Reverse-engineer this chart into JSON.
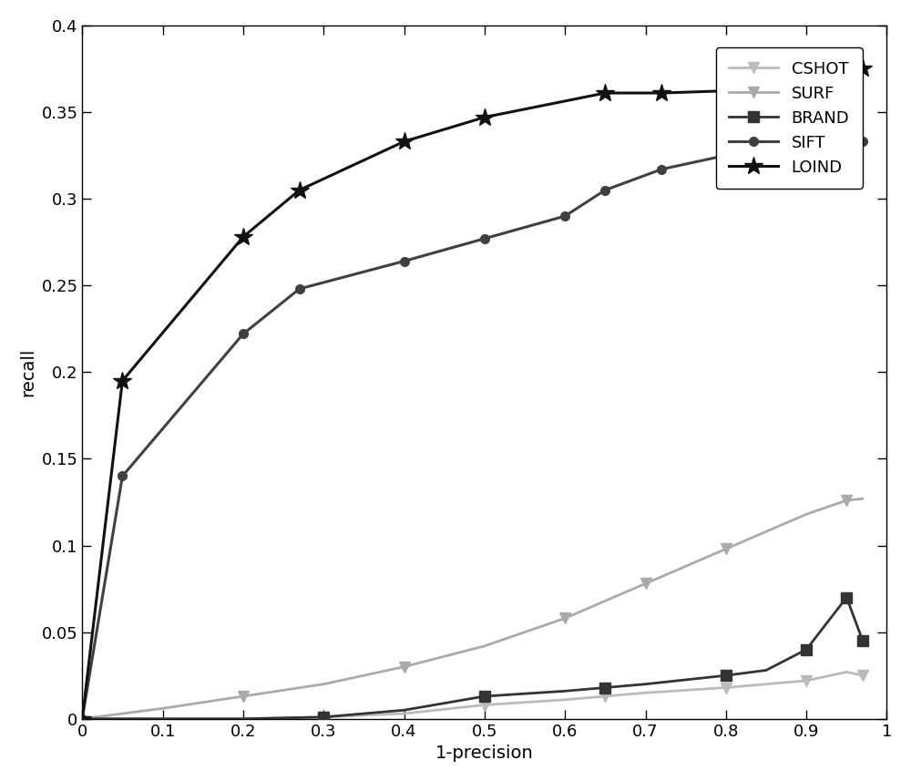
{
  "LOIND": {
    "x": [
      0.0,
      0.05,
      0.2,
      0.27,
      0.4,
      0.5,
      0.65,
      0.72,
      0.85,
      0.92,
      0.97
    ],
    "y": [
      0.0,
      0.195,
      0.278,
      0.305,
      0.333,
      0.347,
      0.361,
      0.361,
      0.363,
      0.37,
      0.375
    ],
    "color": "#111111",
    "linewidth": 2.2,
    "marker": "*",
    "markersize": 15,
    "label": "LOIND",
    "zorder": 5
  },
  "SIFT": {
    "x": [
      0.0,
      0.05,
      0.2,
      0.27,
      0.4,
      0.5,
      0.6,
      0.65,
      0.72,
      0.85,
      0.92,
      0.97
    ],
    "y": [
      0.0,
      0.14,
      0.222,
      0.248,
      0.264,
      0.277,
      0.29,
      0.305,
      0.317,
      0.33,
      0.333,
      0.333
    ],
    "color": "#404040",
    "linewidth": 2.2,
    "marker": "o",
    "markersize": 7,
    "label": "SIFT",
    "zorder": 4
  },
  "SURF": {
    "x": [
      0.0,
      0.05,
      0.1,
      0.2,
      0.3,
      0.4,
      0.5,
      0.6,
      0.65,
      0.7,
      0.75,
      0.8,
      0.85,
      0.9,
      0.95,
      0.97
    ],
    "y": [
      0.0,
      0.003,
      0.006,
      0.013,
      0.02,
      0.03,
      0.042,
      0.058,
      0.068,
      0.078,
      0.088,
      0.098,
      0.108,
      0.118,
      0.126,
      0.127
    ],
    "color": "#aaaaaa",
    "linewidth": 2.0,
    "marker": "v",
    "markersize": 9,
    "label": "SURF",
    "zorder": 3,
    "markevery": [
      3,
      5,
      7,
      9,
      11,
      14
    ]
  },
  "BRAND": {
    "x": [
      0.0,
      0.05,
      0.1,
      0.2,
      0.3,
      0.4,
      0.5,
      0.6,
      0.65,
      0.7,
      0.8,
      0.85,
      0.9,
      0.95,
      0.97
    ],
    "y": [
      0.0,
      0.0,
      0.0,
      0.0,
      0.001,
      0.005,
      0.013,
      0.016,
      0.018,
      0.02,
      0.025,
      0.028,
      0.04,
      0.07,
      0.045
    ],
    "color": "#333333",
    "linewidth": 2.0,
    "marker": "s",
    "markersize": 9,
    "label": "BRAND",
    "zorder": 4,
    "markevery": [
      4,
      6,
      8,
      10,
      12,
      13,
      14
    ]
  },
  "CSHOT": {
    "x": [
      0.0,
      0.05,
      0.1,
      0.2,
      0.3,
      0.4,
      0.5,
      0.6,
      0.65,
      0.7,
      0.8,
      0.85,
      0.9,
      0.95,
      0.97
    ],
    "y": [
      0.0,
      0.0,
      0.0,
      0.0,
      0.001,
      0.003,
      0.008,
      0.011,
      0.013,
      0.015,
      0.018,
      0.02,
      0.022,
      0.027,
      0.025
    ],
    "color": "#bbbbbb",
    "linewidth": 2.0,
    "marker": "v",
    "markersize": 9,
    "label": "CSHOT",
    "zorder": 2,
    "markevery": [
      4,
      6,
      8,
      10,
      12,
      14
    ]
  },
  "xlabel": "1-precision",
  "ylabel": "recall",
  "xlim": [
    0.0,
    1.0
  ],
  "ylim": [
    0.0,
    0.4
  ],
  "xticks": [
    0.0,
    0.1,
    0.2,
    0.3,
    0.4,
    0.5,
    0.6,
    0.7,
    0.8,
    0.9,
    1.0
  ],
  "yticks": [
    0.0,
    0.05,
    0.1,
    0.15,
    0.2,
    0.25,
    0.3,
    0.35,
    0.4
  ],
  "legend_loc": "upper right",
  "background_color": "#ffffff",
  "figsize": [
    10.0,
    8.57
  ],
  "dpi": 100
}
